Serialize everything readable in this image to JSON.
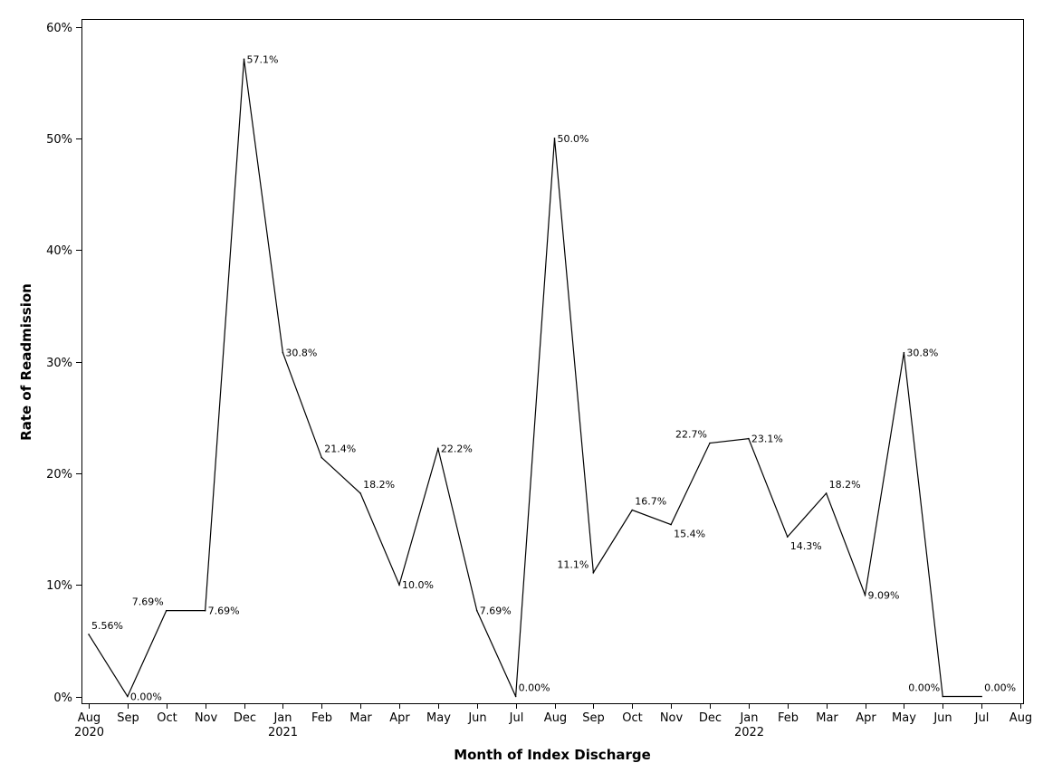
{
  "chart_data": {
    "type": "line",
    "title": "",
    "xlabel": "Month of Index Discharge",
    "ylabel": "Rate of Readmission",
    "ylim": [
      0,
      60
    ],
    "yticks": [
      "0%",
      "10%",
      "20%",
      "30%",
      "40%",
      "50%",
      "60%"
    ],
    "grid": false,
    "legend": "none",
    "x_ticks": [
      {
        "month": "Aug",
        "year": "2020"
      },
      {
        "month": "Sep",
        "year": ""
      },
      {
        "month": "Oct",
        "year": ""
      },
      {
        "month": "Nov",
        "year": ""
      },
      {
        "month": "Dec",
        "year": ""
      },
      {
        "month": "Jan",
        "year": "2021"
      },
      {
        "month": "Feb",
        "year": ""
      },
      {
        "month": "Mar",
        "year": ""
      },
      {
        "month": "Apr",
        "year": ""
      },
      {
        "month": "May",
        "year": ""
      },
      {
        "month": "Jun",
        "year": ""
      },
      {
        "month": "Jul",
        "year": ""
      },
      {
        "month": "Aug",
        "year": ""
      },
      {
        "month": "Sep",
        "year": ""
      },
      {
        "month": "Oct",
        "year": ""
      },
      {
        "month": "Nov",
        "year": ""
      },
      {
        "month": "Dec",
        "year": ""
      },
      {
        "month": "Jan",
        "year": "2022"
      },
      {
        "month": "Feb",
        "year": ""
      },
      {
        "month": "Mar",
        "year": ""
      },
      {
        "month": "Apr",
        "year": ""
      },
      {
        "month": "May",
        "year": ""
      },
      {
        "month": "Jun",
        "year": ""
      },
      {
        "month": "Jul",
        "year": ""
      },
      {
        "month": "Aug",
        "year": ""
      }
    ],
    "series": [
      {
        "color": "#000000",
        "points": [
          {
            "x": "2020-08",
            "y": 5.56,
            "label": "5.56%",
            "pos": "above-right"
          },
          {
            "x": "2020-09",
            "y": 0.0,
            "label": "0.00%",
            "pos": "right"
          },
          {
            "x": "2020-10",
            "y": 7.69,
            "label": "7.69%",
            "pos": "above-left"
          },
          {
            "x": "2020-11",
            "y": 7.69,
            "label": "7.69%",
            "pos": "right"
          },
          {
            "x": "2020-12",
            "y": 57.1,
            "label": "57.1%",
            "pos": "right"
          },
          {
            "x": "2021-01",
            "y": 30.8,
            "label": "30.8%",
            "pos": "right"
          },
          {
            "x": "2021-02",
            "y": 21.4,
            "label": "21.4%",
            "pos": "above-right"
          },
          {
            "x": "2021-03",
            "y": 18.2,
            "label": "18.2%",
            "pos": "above-right"
          },
          {
            "x": "2021-04",
            "y": 10.0,
            "label": "10.0%",
            "pos": "right"
          },
          {
            "x": "2021-05",
            "y": 22.2,
            "label": "22.2%",
            "pos": "right"
          },
          {
            "x": "2021-06",
            "y": 7.69,
            "label": "7.69%",
            "pos": "right"
          },
          {
            "x": "2021-07",
            "y": 0.0,
            "label": "0.00%",
            "pos": "above-right"
          },
          {
            "x": "2021-08",
            "y": 50.0,
            "label": "50.0%",
            "pos": "right"
          },
          {
            "x": "2021-09",
            "y": 11.1,
            "label": "11.1%",
            "pos": "left"
          },
          {
            "x": "2021-10",
            "y": 16.7,
            "label": "16.7%",
            "pos": "above-right"
          },
          {
            "x": "2021-11",
            "y": 15.4,
            "label": "15.4%",
            "pos": "below-right"
          },
          {
            "x": "2021-12",
            "y": 22.7,
            "label": "22.7%",
            "pos": "above-left"
          },
          {
            "x": "2022-01",
            "y": 23.1,
            "label": "23.1%",
            "pos": "right"
          },
          {
            "x": "2022-02",
            "y": 14.3,
            "label": "14.3%",
            "pos": "below-right"
          },
          {
            "x": "2022-03",
            "y": 18.2,
            "label": "18.2%",
            "pos": "above-right"
          },
          {
            "x": "2022-04",
            "y": 9.09,
            "label": "9.09%",
            "pos": "right"
          },
          {
            "x": "2022-05",
            "y": 30.8,
            "label": "30.8%",
            "pos": "right"
          },
          {
            "x": "2022-06",
            "y": 0.0,
            "label": "0.00%",
            "pos": "above-left"
          },
          {
            "x": "2022-07",
            "y": 0.0,
            "label": "0.00%",
            "pos": "above-right"
          }
        ]
      }
    ]
  }
}
